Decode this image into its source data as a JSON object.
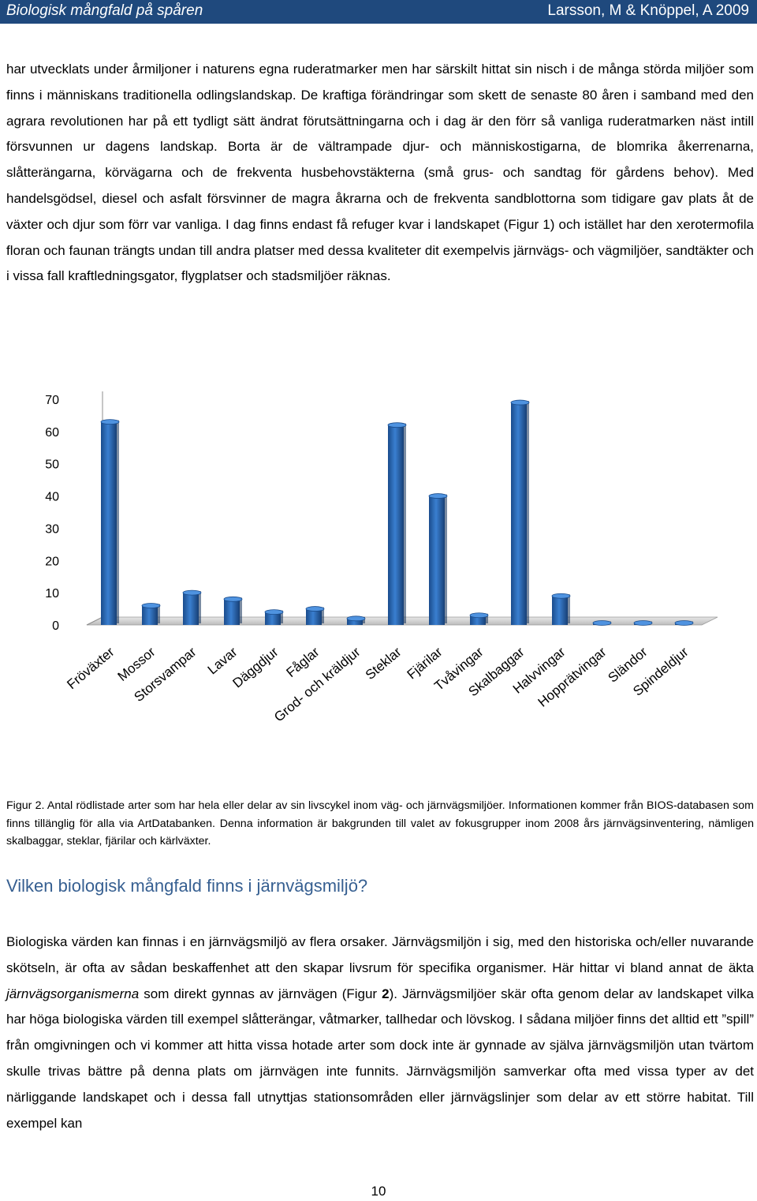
{
  "header": {
    "title": "Biologisk mångfald på spåren",
    "authors": "Larsson, M & Knöppel, A 2009"
  },
  "paragraph1": "har utvecklats under årmiljoner i naturens egna ruderatmarker men har särskilt hittat sin nisch i de många störda miljöer som finns i människans traditionella odlingslandskap. De kraftiga förändringar som skett de senaste 80 åren i samband med den agrara revolutionen har på ett tydligt sätt ändrat förutsättningarna och i dag är den förr så vanliga ruderatmarken näst intill försvunnen ur dagens landskap. Borta är de vältrampade djur- och människostigarna, de blomrika åkerrenarna, slåtterängarna, körvägarna och de frekventa husbehovstäkterna (små grus- och sandtag för gårdens behov). Med handelsgödsel, diesel och asfalt försvinner de magra åkrarna och de frekventa sandblottorna som tidigare gav plats åt de växter och djur som förr var vanliga. I dag finns endast få refuger kvar i landskapet (Figur 1) och istället har den xerotermofila floran och faunan trängts undan till andra platser med dessa kvaliteter dit exempelvis järnvägs- och vägmiljöer, sandtäkter och i vissa fall kraftledningsgator, flygplatser och stadsmiljöer räknas.",
  "chart_data": {
    "type": "bar",
    "title": "",
    "xlabel": "",
    "ylabel": "",
    "ylim": [
      0,
      70
    ],
    "yticks": [
      0,
      10,
      20,
      30,
      40,
      50,
      60,
      70
    ],
    "categories": [
      "Fröväxter",
      "Mossor",
      "Storsvampar",
      "Lavar",
      "Däggdjur",
      "Fåglar",
      "Grod- och kräldjur",
      "Steklar",
      "Fjärilar",
      "Tvåvingar",
      "Skalbaggar",
      "Halvvingar",
      "Hopprätvingar",
      "Sländor",
      "Spindeldjur"
    ],
    "values": [
      63,
      6,
      10,
      8,
      4,
      5,
      2,
      62,
      40,
      3,
      69,
      9,
      0,
      0,
      0
    ],
    "grid": false,
    "legend": "none",
    "bar_color": "#1f5fb0"
  },
  "caption": "Figur 2. Antal rödlistade arter som har hela eller delar av sin livscykel inom väg- och järnvägsmiljöer. Informationen kommer från BIOS-databasen som finns tillänglig för alla via ArtDatabanken. Denna information är bakgrunden till valet av fokusgrupper inom 2008 års järnvägsinventering, nämligen skalbaggar, steklar, fjärilar och kärlväxter.",
  "heading": "Vilken biologisk mångfald finns i järnvägsmiljö?",
  "paragraph2": {
    "part1": "Biologiska värden kan finnas i en järnvägsmiljö av flera orsaker. Järnvägsmiljön i sig, med den historiska och/eller nuvarande skötseln, är ofta av sådan beskaffenhet att den skapar livsrum för specifika organismer. Här hittar vi bland annat de äkta ",
    "emphasis": "järnvägsorganismerna",
    "part2": " som direkt gynnas av järnvägen (Figur ",
    "bold": "2",
    "part3": "). Järnvägsmiljöer skär ofta genom delar av landskapet vilka har höga biologiska värden till exempel slåtterängar, våtmarker, tallhedar och lövskog. I sådana miljöer finns det alltid ett ”spill” från omgivningen och vi kommer att hitta vissa hotade arter som dock inte är gynnade av själva järnvägsmiljön utan tvärtom skulle trivas bättre på denna plats om järnvägen inte funnits. Järnvägsmiljön samverkar ofta med vissa typer av det närliggande landskapet och i dessa fall utnyttjas stationsområden eller järnvägslinjer som delar av ett större habitat. Till exempel kan"
  },
  "page_number": "10"
}
